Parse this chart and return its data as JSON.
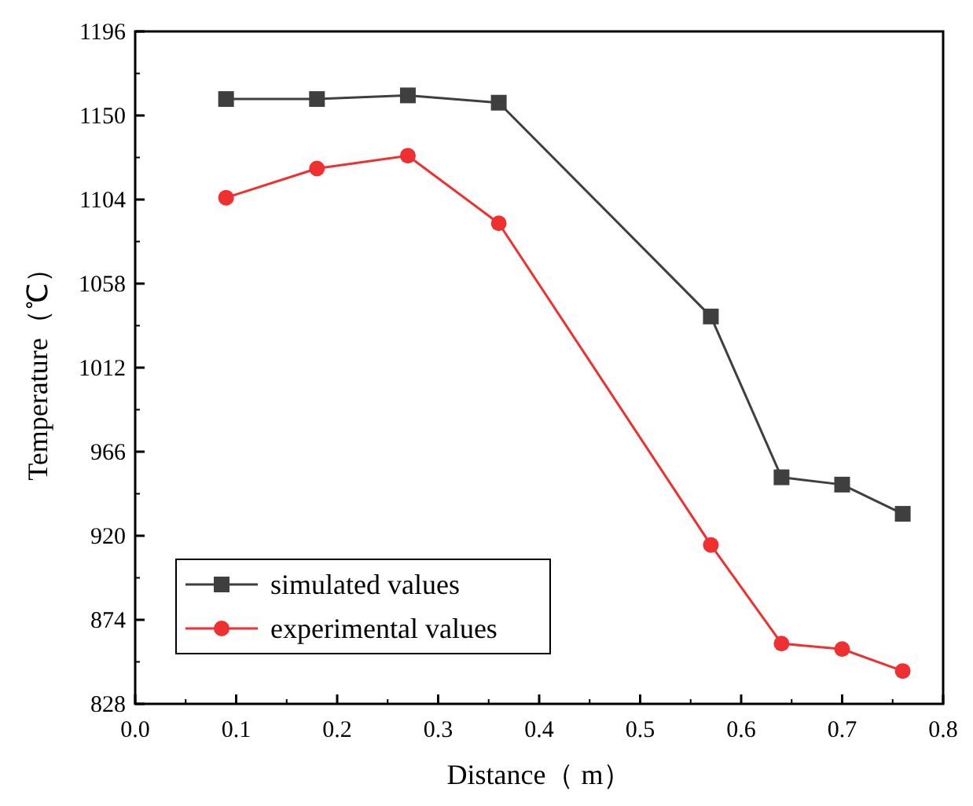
{
  "chart_data": {
    "type": "line",
    "xlabel": "Distance（ m）",
    "ylabel": "Temperature（℃）",
    "xlim": [
      0,
      0.8
    ],
    "xticks": [
      {
        "value": 0,
        "label": "0.0"
      },
      0.1,
      0.2,
      0.3,
      0.4,
      0.5,
      0.6,
      0.7,
      0.8
    ],
    "ylim": [
      828,
      1196
    ],
    "yticks": [
      828,
      874,
      920,
      966,
      1012,
      1058,
      1104,
      1150,
      1196
    ],
    "x": [
      0.09,
      0.18,
      0.27,
      0.36,
      0.57,
      0.64,
      0.7,
      0.76
    ],
    "series": [
      {
        "name": "simulated values",
        "color": "#3f3f3f",
        "marker": "square",
        "values": [
          1159,
          1159,
          1161,
          1157,
          1040,
          952,
          948,
          932
        ]
      },
      {
        "name": "experimental values",
        "color": "#f03030",
        "marker": "circle",
        "values": [
          1105,
          1121,
          1128,
          1091,
          915,
          861,
          858,
          846
        ]
      }
    ],
    "legend": "bottom left",
    "grid": false,
    "line_style": "solid"
  }
}
